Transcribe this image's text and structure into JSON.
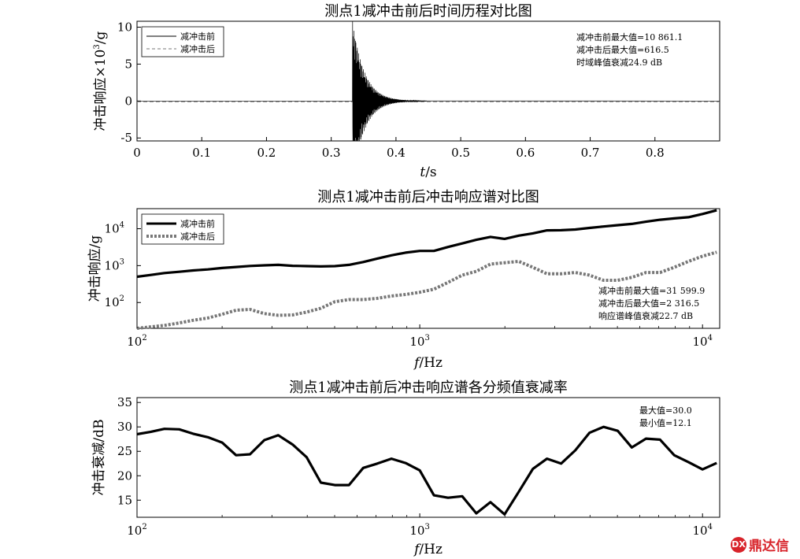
{
  "chart_data": [
    {
      "type": "line",
      "title": "测点1减冲击前后时间历程对比图",
      "xlabel_italic": "t",
      "xlabel_rest": "/s",
      "ylabel_main": "冲击响应×10",
      "ylabel_sup": "3",
      "ylabel_tail": "/g",
      "xlim": [
        0,
        0.9
      ],
      "ylim": [
        -5.4,
        10.8
      ],
      "x_ticks": [
        0,
        0.1,
        0.2,
        0.3,
        0.4,
        0.5,
        0.6,
        0.7,
        0.8
      ],
      "y_ticks": [
        -5,
        0,
        5,
        10
      ],
      "legend_position": "top-left",
      "annotations": [
        "减冲击前最大值=10 861.1",
        "减冲击后最大值=616.5",
        "时域峰值衰减24.9 dB"
      ],
      "series": [
        {
          "name": "减冲击前",
          "style": "solid",
          "peak": 10.8611,
          "shock_time": 0.333
        },
        {
          "name": "减冲击后",
          "style": "dashed",
          "peak": 0.6165,
          "shock_time": 0.333
        }
      ]
    },
    {
      "type": "line",
      "title": "测点1减冲击前后冲击响应谱对比图",
      "xlabel_italic": "f",
      "xlabel_rest": "/Hz",
      "ylabel": "冲击响应/g",
      "xscale": "log",
      "yscale": "log",
      "xlim": [
        100,
        11500
      ],
      "ylim": [
        20,
        35000
      ],
      "x_ticks": [
        100,
        1000,
        10000
      ],
      "x_tick_labels": [
        [
          "10",
          "2"
        ],
        [
          "10",
          "3"
        ],
        [
          "10",
          "4"
        ]
      ],
      "y_ticks": [
        100,
        1000,
        10000
      ],
      "y_tick_labels": [
        [
          "10",
          "2"
        ],
        [
          "10",
          "3"
        ],
        [
          "10",
          "4"
        ]
      ],
      "legend_position": "top-left",
      "annotations": [
        "减冲击前最大值=31 599.9",
        "减冲击后最大值=2 316.5",
        "响应谱峰值衰减22.7 dB"
      ],
      "x": [
        100,
        112,
        125,
        141,
        158,
        178,
        200,
        224,
        251,
        282,
        316,
        355,
        398,
        447,
        501,
        562,
        631,
        708,
        794,
        891,
        1000,
        1122,
        1259,
        1413,
        1585,
        1778,
        1995,
        2239,
        2512,
        2818,
        3162,
        3548,
        3981,
        4467,
        5012,
        5623,
        6310,
        7079,
        7943,
        8913,
        10000,
        11220
      ],
      "series": [
        {
          "name": "减冲击前",
          "style": "solid-thick",
          "values": [
            500,
            560,
            630,
            680,
            740,
            790,
            860,
            920,
            980,
            1020,
            1050,
            990,
            970,
            950,
            970,
            1050,
            1250,
            1550,
            1900,
            2250,
            2500,
            2500,
            3200,
            4000,
            5000,
            6000,
            5300,
            6500,
            7500,
            9000,
            9100,
            9500,
            10500,
            11500,
            12500,
            13500,
            15500,
            17500,
            19000,
            20500,
            25000,
            31600
          ]
        },
        {
          "name": "减冲击后",
          "style": "dotted-thick",
          "values": [
            20,
            22,
            24,
            28,
            33,
            38,
            48,
            62,
            65,
            50,
            45,
            46,
            55,
            70,
            105,
            120,
            120,
            130,
            150,
            165,
            190,
            230,
            350,
            550,
            700,
            1100,
            1200,
            1300,
            900,
            600,
            600,
            650,
            550,
            400,
            400,
            480,
            650,
            650,
            900,
            1300,
            1800,
            2316
          ]
        }
      ]
    },
    {
      "type": "line",
      "title": "测点1减冲击前后冲击响应谱各分频值衰减率",
      "xlabel_italic": "f",
      "xlabel_rest": "/Hz",
      "ylabel": "冲击衰减/dB",
      "xscale": "log",
      "xlim": [
        100,
        11500
      ],
      "ylim": [
        11.5,
        36
      ],
      "x_ticks": [
        100,
        1000,
        10000
      ],
      "x_tick_labels": [
        [
          "10",
          "2"
        ],
        [
          "10",
          "3"
        ],
        [
          "10",
          "4"
        ]
      ],
      "y_ticks": [
        15,
        20,
        25,
        30,
        35
      ],
      "annotations": [
        "最大值=30.0",
        "最小值=12.1"
      ],
      "x": [
        100,
        112,
        125,
        141,
        158,
        178,
        200,
        224,
        251,
        282,
        316,
        355,
        398,
        447,
        501,
        562,
        631,
        708,
        794,
        891,
        1000,
        1122,
        1259,
        1413,
        1585,
        1778,
        1995,
        2239,
        2512,
        2818,
        3162,
        3548,
        3981,
        4467,
        5012,
        5623,
        6310,
        7079,
        7943,
        8913,
        10000,
        11220
      ],
      "series": [
        {
          "name": "",
          "values": [
            28.5,
            29.0,
            29.6,
            29.5,
            28.6,
            27.9,
            26.8,
            24.2,
            24.4,
            27.3,
            28.3,
            26.4,
            23.8,
            18.6,
            18.1,
            18.1,
            21.6,
            22.5,
            23.5,
            22.6,
            21.1,
            16.0,
            15.5,
            15.8,
            12.3,
            14.6,
            12.1,
            16.7,
            21.4,
            23.5,
            22.5,
            25.2,
            28.8,
            30.0,
            29.2,
            25.8,
            27.6,
            27.4,
            24.2,
            22.8,
            21.3,
            22.6
          ]
        }
      ]
    }
  ],
  "watermark": {
    "glyph": "DX",
    "text": "鼎达信"
  }
}
